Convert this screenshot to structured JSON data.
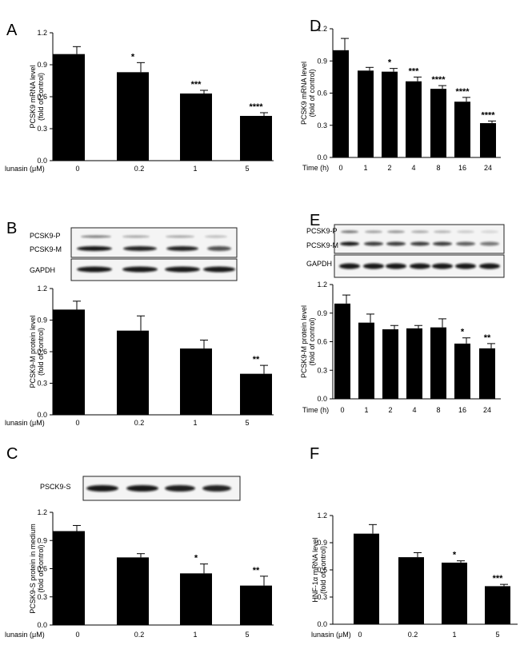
{
  "chart_data": [
    {
      "panel": "A",
      "type": "bar",
      "xlabel": "lunasin (μM)",
      "categories": [
        "0",
        "0.2",
        "1",
        "5"
      ],
      "values": [
        1.0,
        0.83,
        0.63,
        0.42
      ],
      "errors": [
        0.07,
        0.09,
        0.03,
        0.03
      ],
      "significance": [
        "",
        "*",
        "***",
        "****"
      ],
      "ylabel": [
        "PCSK9 mRNA level",
        "(fold of control)"
      ],
      "ylim": [
        0,
        1.2
      ],
      "yticks": [
        "0.0",
        "0.3",
        "0.6",
        "0.9",
        "1.2"
      ]
    },
    {
      "panel": "B",
      "type": "bar",
      "xlabel": "lunasin (μM)",
      "categories": [
        "0",
        "0.2",
        "1",
        "5"
      ],
      "values": [
        1.0,
        0.8,
        0.63,
        0.39
      ],
      "errors": [
        0.08,
        0.14,
        0.08,
        0.08
      ],
      "significance": [
        "",
        "",
        "",
        "**"
      ],
      "ylabel": [
        "PCSK9-M protein level",
        "(fold of control)"
      ],
      "ylim": [
        0,
        1.2
      ],
      "yticks": [
        "0.0",
        "0.3",
        "0.6",
        "0.9",
        "1.2"
      ],
      "blot_labels": [
        "PCSK9-P",
        "PCSK9-M",
        "GAPDH"
      ]
    },
    {
      "panel": "C",
      "type": "bar",
      "xlabel": "lunasin (μM)",
      "categories": [
        "0",
        "0.2",
        "1",
        "5"
      ],
      "values": [
        1.0,
        0.72,
        0.55,
        0.42
      ],
      "errors": [
        0.06,
        0.04,
        0.1,
        0.1
      ],
      "significance": [
        "",
        "",
        "*",
        "**"
      ],
      "ylabel": [
        "PCSK9-S protein in medium",
        "(fold of control)"
      ],
      "ylim": [
        0,
        1.2
      ],
      "yticks": [
        "0.0",
        "0.3",
        "0.6",
        "0.9",
        "1.2"
      ],
      "blot_labels": [
        "PSCK9-S"
      ]
    },
    {
      "panel": "D",
      "type": "bar",
      "xlabel": "Time (h)",
      "categories": [
        "0",
        "1",
        "2",
        "4",
        "8",
        "16",
        "24"
      ],
      "values": [
        1.0,
        0.81,
        0.8,
        0.71,
        0.64,
        0.52,
        0.32
      ],
      "errors": [
        0.11,
        0.03,
        0.03,
        0.04,
        0.03,
        0.04,
        0.02
      ],
      "significance": [
        "",
        "",
        "*",
        "***",
        "****",
        "****",
        "****"
      ],
      "ylabel": [
        "PCSK9 mRNA level",
        "(fold of control)"
      ],
      "ylim": [
        0,
        1.2
      ],
      "yticks": [
        "0.0",
        "0.3",
        "0.6",
        "0.9",
        "1.2"
      ]
    },
    {
      "panel": "E",
      "type": "bar",
      "xlabel": "Time (h)",
      "categories": [
        "0",
        "1",
        "2",
        "4",
        "8",
        "16",
        "24"
      ],
      "values": [
        1.0,
        0.8,
        0.73,
        0.74,
        0.75,
        0.58,
        0.53
      ],
      "errors": [
        0.09,
        0.09,
        0.04,
        0.03,
        0.09,
        0.06,
        0.05
      ],
      "significance": [
        "",
        "",
        "",
        "",
        "",
        "*",
        "**"
      ],
      "ylabel": [
        "PCSK9-M protein level",
        "(fold of control)"
      ],
      "ylim": [
        0,
        1.2
      ],
      "yticks": [
        "0.0",
        "0.3",
        "0.6",
        "0.9",
        "1.2"
      ],
      "blot_labels": [
        "PCSK9-P",
        "PCSK9-M",
        "GAPDH"
      ]
    },
    {
      "panel": "F",
      "type": "bar",
      "xlabel": "lunasin (μM)",
      "categories": [
        "0",
        "0.2",
        "1",
        "5"
      ],
      "values": [
        1.0,
        0.74,
        0.68,
        0.42
      ],
      "errors": [
        0.1,
        0.05,
        0.02,
        0.02
      ],
      "significance": [
        "",
        "",
        "*",
        "***"
      ],
      "ylabel": [
        "HNF-1α mRNA level",
        "(fold of control)"
      ],
      "ylim": [
        0,
        1.2
      ],
      "yticks": [
        "0.0",
        "0.3",
        "0.6",
        "0.9",
        "1.2"
      ]
    }
  ]
}
